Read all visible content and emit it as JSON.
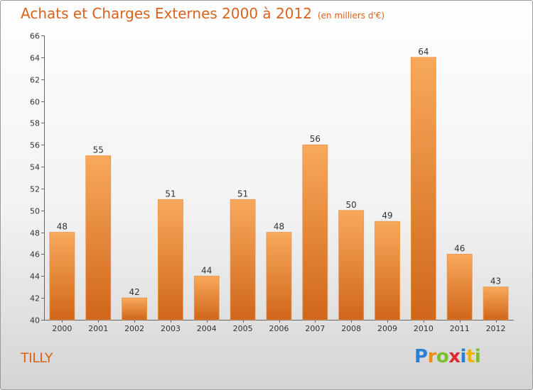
{
  "title": "Achats et Charges Externes 2000 à 2012",
  "subtitle": "(en milliers d'€)",
  "place": "TILLY",
  "logo": "Proxiti",
  "colors": {
    "bar_top": "#f8a95b",
    "bar_bottom": "#d0661a",
    "title": "#d9621c"
  },
  "chart_data": {
    "type": "bar",
    "categories": [
      "2000",
      "2001",
      "2002",
      "2003",
      "2004",
      "2005",
      "2006",
      "2007",
      "2008",
      "2009",
      "2010",
      "2011",
      "2012"
    ],
    "values": [
      48,
      55,
      42,
      51,
      44,
      51,
      48,
      56,
      50,
      49,
      64,
      46,
      43
    ],
    "ylim": [
      40,
      66
    ],
    "yticks": [
      40,
      42,
      44,
      46,
      48,
      50,
      52,
      54,
      56,
      58,
      60,
      62,
      64,
      66
    ],
    "grid": false,
    "xlabel": "",
    "ylabel": ""
  }
}
